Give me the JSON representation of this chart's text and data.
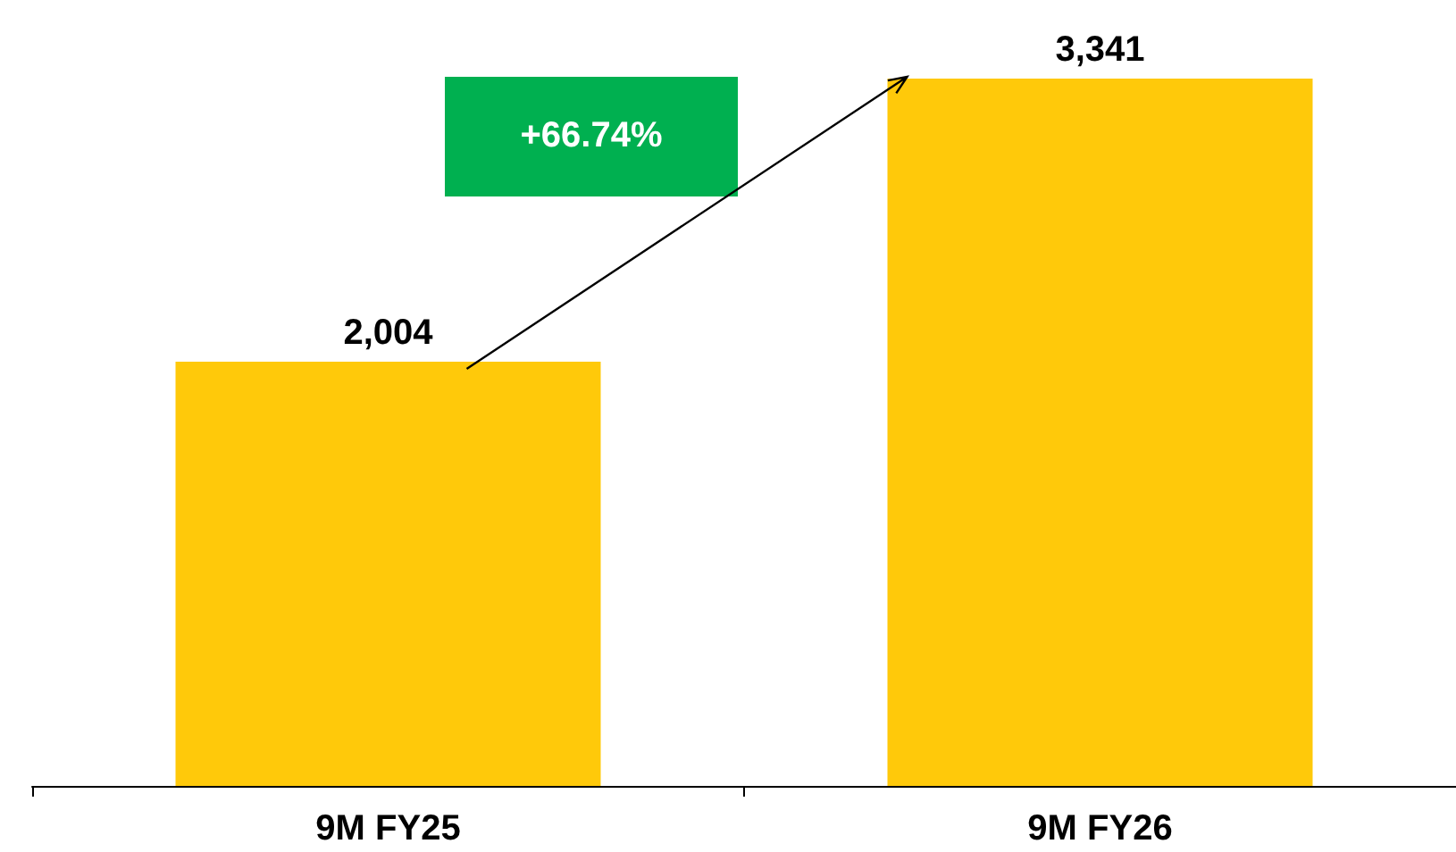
{
  "chart_data": {
    "type": "bar",
    "categories": [
      "9M FY25",
      "9M FY26"
    ],
    "values": [
      2004,
      3341
    ],
    "color": "#ffc90a",
    "data_labels": true,
    "value_labels": [
      "2,004",
      "3,341"
    ],
    "annotations": [
      "+66.74%"
    ]
  }
}
